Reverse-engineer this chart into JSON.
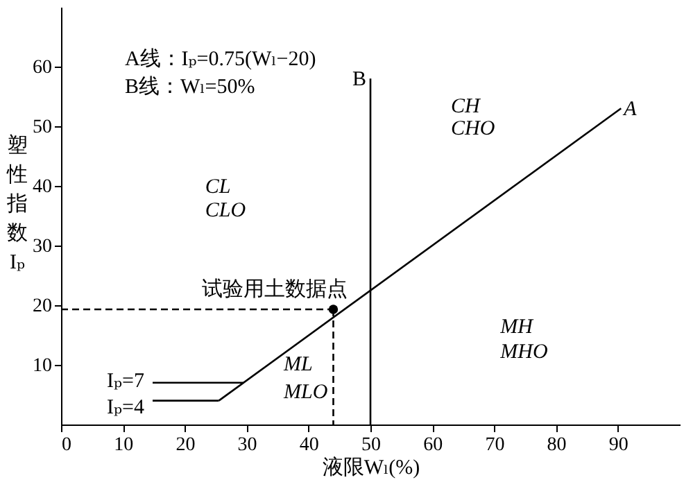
{
  "chart_data": {
    "type": "line",
    "xlabel": "液限Wₗ(%)",
    "ylabel": "塑性指数Iₚ",
    "xlim": [
      0,
      100
    ],
    "ylim": [
      0,
      70
    ],
    "xticks": [
      0,
      10,
      20,
      30,
      40,
      50,
      60,
      70,
      80,
      90
    ],
    "yticks": [
      10,
      20,
      30,
      40,
      50,
      60
    ],
    "grid": false,
    "series": [
      {
        "name": "A",
        "color": "#000000",
        "x": [
          25.5,
          90.5
        ],
        "values": [
          4,
          53
        ]
      },
      {
        "name": "B",
        "color": "#000000",
        "x": [
          50,
          50
        ],
        "values": [
          0,
          58
        ]
      },
      {
        "name": "Iₚ=7",
        "color": "#000000",
        "x": [
          14.8,
          29.5
        ],
        "values": [
          7,
          7
        ]
      },
      {
        "name": "Iₚ=4",
        "color": "#000000",
        "x": [
          14.8,
          25.5
        ],
        "values": [
          4,
          4
        ]
      },
      {
        "name": "试验用土数据点",
        "type": "scatter",
        "marker": "circle",
        "color": "#000000",
        "x": [
          44
        ],
        "values": [
          19.3
        ]
      },
      {
        "type": "line",
        "line_style": "dashed",
        "color": "#000000",
        "x": [
          0,
          44
        ],
        "values": [
          19.3,
          19.3
        ]
      },
      {
        "type": "line",
        "line_style": "dashed",
        "color": "#000000",
        "x": [
          44,
          44
        ],
        "values": [
          19.3,
          0
        ]
      }
    ],
    "annotations": [
      "A线：Iₚ=0.75(Wₗ−20)",
      "B线：Wₗ=50%",
      "CL",
      "CLO",
      "CH",
      "CHO",
      "ML",
      "MLO",
      "MH",
      "MHO"
    ]
  }
}
